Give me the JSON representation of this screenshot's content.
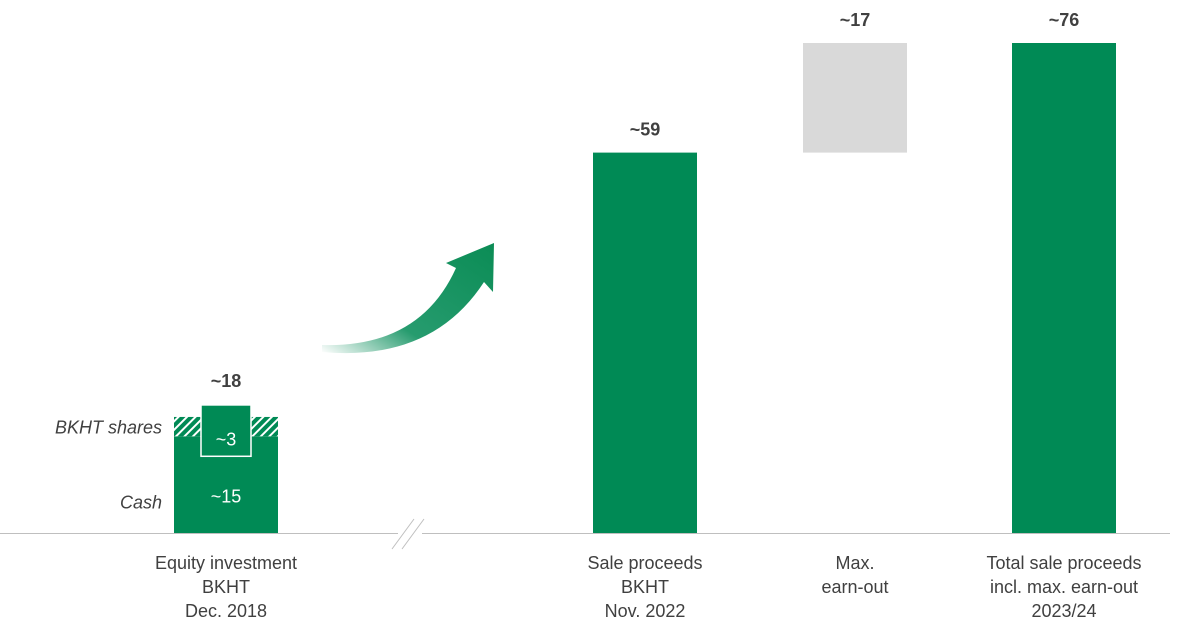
{
  "chart_data": {
    "type": "bar",
    "subtype": "waterfall",
    "title": "",
    "xlabel": "",
    "ylabel": "",
    "ylim": [
      0,
      76
    ],
    "grid": false,
    "legend": "none",
    "axis_break_between": [
      "Equity investment BKHT Dec. 2018",
      "Sale proceeds BKHT Nov. 2022"
    ],
    "growth_arrow": true,
    "colors": {
      "primary": "#008a55",
      "earnout": "#d9d9d9",
      "text": "#404040",
      "axis": "#bfbfbf",
      "hatch_stripe": "#ffffff"
    },
    "categories": [
      {
        "id": "investment",
        "lines": [
          "Equity investment",
          "BKHT",
          "Dec. 2018"
        ]
      },
      {
        "id": "sale",
        "lines": [
          "Sale proceeds",
          "BKHT",
          "Nov. 2022"
        ]
      },
      {
        "id": "earnout",
        "lines": [
          "Max.",
          "earn-out"
        ]
      },
      {
        "id": "total",
        "lines": [
          "Total sale proceeds",
          "incl. max. earn-out",
          "2023/24"
        ]
      }
    ],
    "bars": [
      {
        "category": "investment",
        "total": 18,
        "total_label": "~18",
        "segments": [
          {
            "name": "Cash",
            "value": 15,
            "label": "~15",
            "style": "solid"
          },
          {
            "name": "BKHT shares",
            "value": 3,
            "label": "~3",
            "style": "hatched"
          }
        ]
      },
      {
        "category": "sale",
        "base": 0,
        "value": 59,
        "total_label": "~59",
        "style": "solid"
      },
      {
        "category": "earnout",
        "base": 59,
        "value": 17,
        "total_label": "~17",
        "style": "floating"
      },
      {
        "category": "total",
        "base": 0,
        "value": 76,
        "total_label": "~76",
        "style": "solid"
      }
    ]
  }
}
